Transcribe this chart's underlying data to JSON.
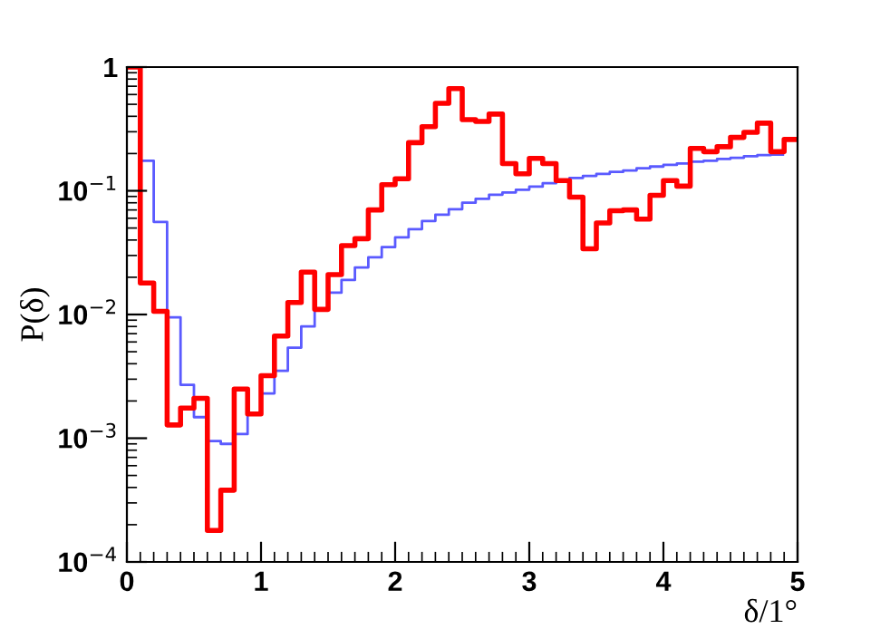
{
  "chart_data": {
    "type": "histogram",
    "xlabel": "δ/1°",
    "ylabel": "P(δ)",
    "bins": [
      0,
      0.1,
      0.2,
      0.3,
      0.4,
      0.5,
      0.6,
      0.7,
      0.8,
      0.9,
      1.0,
      1.1,
      1.2,
      1.3,
      1.4,
      1.5,
      1.6,
      1.7,
      1.8,
      1.9,
      2.0,
      2.1,
      2.2,
      2.3,
      2.4,
      2.5,
      2.6,
      2.7,
      2.8,
      2.9,
      3.0,
      3.1,
      3.2,
      3.3,
      3.4,
      3.5,
      3.6,
      3.7,
      3.8,
      3.9,
      4.0,
      4.1,
      4.2,
      4.3,
      4.4,
      4.5,
      4.6,
      4.7,
      4.8,
      4.9,
      5.0
    ],
    "series": [
      {
        "color": "#5a5aff",
        "bins": [
          0,
          0.1,
          0.2,
          0.3,
          0.4,
          0.5,
          0.6,
          0.7,
          0.8,
          0.9,
          1.0,
          1.1,
          1.2,
          1.3,
          1.4,
          1.5,
          1.6,
          1.7,
          1.8,
          1.9,
          2.0,
          2.1,
          2.2,
          2.3,
          2.4,
          2.5,
          2.6,
          2.7,
          2.8,
          2.9,
          3.0,
          3.1,
          3.2,
          3.3,
          3.4,
          3.5,
          3.6,
          3.7,
          3.8,
          3.9,
          4.0,
          4.1,
          4.2,
          4.3,
          4.4,
          4.5,
          4.6,
          4.7,
          4.8,
          4.9
        ],
        "values": [
          1,
          0.175,
          0.056,
          0.0095,
          0.0027,
          0.00148,
          0.00095,
          0.0009,
          0.00108,
          0.00157,
          0.0023,
          0.0035,
          0.0054,
          0.008,
          0.011,
          0.015,
          0.019,
          0.024,
          0.029,
          0.035,
          0.042,
          0.049,
          0.057,
          0.064,
          0.071,
          0.08,
          0.086,
          0.093,
          0.097,
          0.102,
          0.108,
          0.115,
          0.121,
          0.127,
          0.132,
          0.137,
          0.142,
          0.146,
          0.152,
          0.157,
          0.162,
          0.166,
          0.172,
          0.175,
          0.181,
          0.185,
          0.19,
          0.194,
          0.196
        ]
      },
      {
        "color": "#ff0000",
        "values": [
          1,
          0.018,
          0.0106,
          0.00128,
          0.00175,
          0.0021,
          0.00018,
          0.00038,
          0.0025,
          0.00157,
          0.0032,
          0.0067,
          0.0125,
          0.022,
          0.011,
          0.021,
          0.036,
          0.041,
          0.07,
          0.112,
          0.125,
          0.245,
          0.33,
          0.51,
          0.67,
          0.376,
          0.364,
          0.417,
          0.166,
          0.137,
          0.183,
          0.166,
          0.121,
          0.089,
          0.034,
          0.055,
          0.069,
          0.07,
          0.059,
          0.092,
          0.121,
          0.109,
          0.22,
          0.207,
          0.227,
          0.27,
          0.297,
          0.352,
          0.207,
          0.26
        ]
      }
    ],
    "log": "y",
    "xlim": [
      0,
      5
    ],
    "xticks": [
      0,
      1,
      2,
      3,
      4,
      5
    ],
    "ylim": [
      0.0001,
      1
    ],
    "yticks": [
      {
        "value": 0.0001,
        "label": "10$^{−4}$"
      },
      {
        "value": 0.001,
        "label": "10$^{−3}$"
      },
      {
        "value": 0.01,
        "label": "10$^{−2}$"
      },
      {
        "value": 0.1,
        "label": "10$^{−1}$"
      },
      1
    ],
    "grid": false,
    "legend": false
  }
}
